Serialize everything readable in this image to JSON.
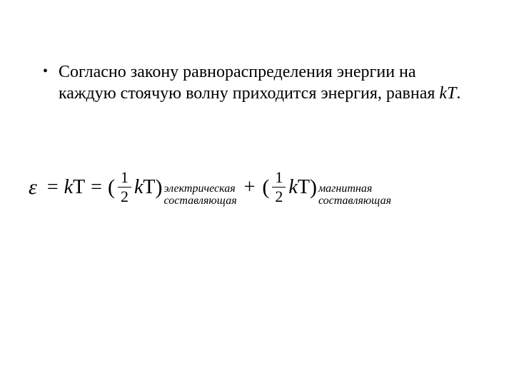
{
  "colors": {
    "background": "#ffffff",
    "text": "#000000"
  },
  "typography": {
    "body_font": "Times New Roman",
    "body_size_pt": 24,
    "equation_size_pt": 28,
    "subscript_size_pt": 16
  },
  "bullet": {
    "marker": "•",
    "text_before_math": "Согласно закону равнораспределения энергии на каждую стоячую волну приходится энергия, равная ",
    "inline_math": "kT",
    "text_after_math": "."
  },
  "equation": {
    "epsilon": "ε",
    "equals": "=",
    "k": "k",
    "T": "T",
    "open_paren": "(",
    "close_paren": ")",
    "frac_num": "1",
    "frac_den": "2",
    "plus": "+",
    "sub1_line1": "электрическая",
    "sub1_line2": "составляющая",
    "sub2_line1": "магнитная",
    "sub2_line2": "составляющая"
  }
}
